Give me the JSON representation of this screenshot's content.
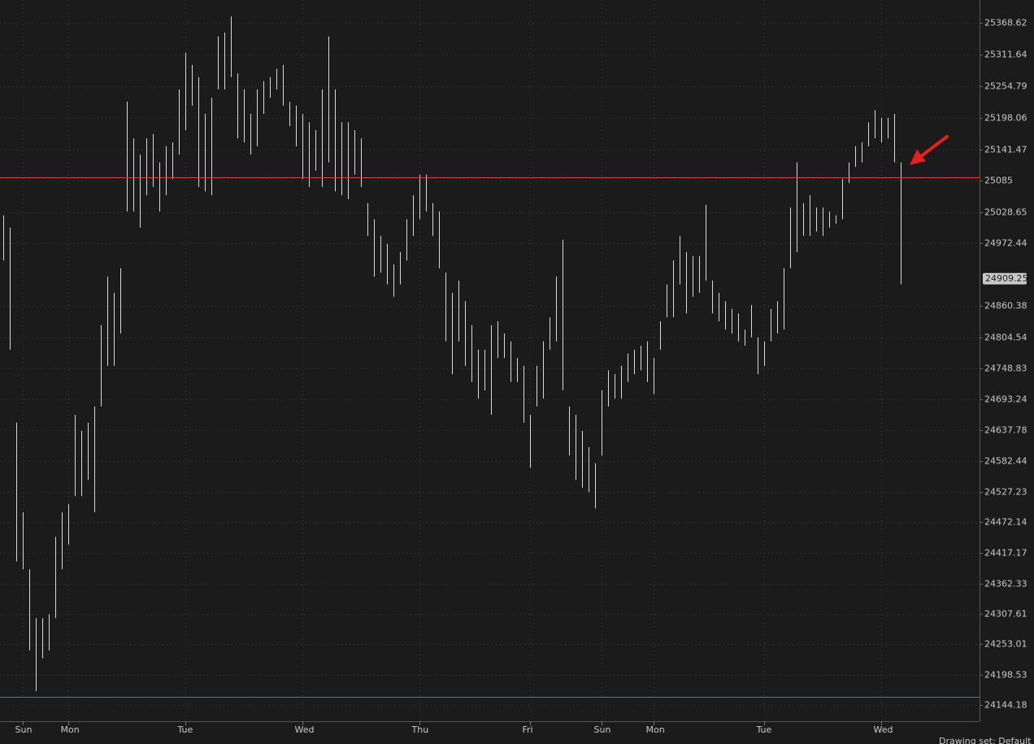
{
  "chart_data": {
    "type": "ohlc",
    "categories": [
      null,
      null,
      null,
      "Sun",
      null,
      null,
      null,
      null,
      null,
      null,
      "Mon",
      null,
      null,
      null,
      null,
      null,
      null,
      null,
      null,
      null,
      null,
      null,
      null,
      null,
      null,
      null,
      null,
      null,
      "Tue",
      null,
      null,
      null,
      null,
      null,
      null,
      null,
      null,
      null,
      null,
      null,
      null,
      null,
      null,
      null,
      null,
      null,
      "Wed",
      null,
      null,
      null,
      null,
      null,
      null,
      null,
      null,
      null,
      null,
      null,
      null,
      null,
      null,
      null,
      null,
      null,
      "Thu",
      null,
      null,
      null,
      null,
      null,
      null,
      null,
      null,
      null,
      null,
      null,
      null,
      null,
      null,
      null,
      null,
      "Fri",
      null,
      null,
      null,
      null,
      null,
      null,
      null,
      null,
      null,
      null,
      "Sun",
      null,
      null,
      null,
      null,
      null,
      null,
      null,
      "Mon",
      null,
      null,
      null,
      null,
      null,
      null,
      null,
      null,
      null,
      null,
      null,
      null,
      null,
      null,
      null,
      null,
      "Tue",
      null,
      null,
      null,
      null,
      null,
      null,
      null,
      null,
      null,
      null,
      null,
      null,
      null,
      null,
      null,
      null,
      null,
      "Wed",
      null,
      null,
      null
    ],
    "high": [
      25023,
      25001,
      24651,
      24490,
      24388,
      24300,
      24300,
      24307,
      24446,
      24490,
      24505,
      24665,
      24636,
      24651,
      24680,
      24826,
      24913,
      24884,
      24928,
      25227,
      25161,
      25132,
      25161,
      25169,
      25118,
      25147,
      25154,
      25249,
      25315,
      25293,
      25271,
      25205,
      25234,
      25344,
      25351,
      25380,
      25278,
      25249,
      25205,
      25249,
      25264,
      25271,
      25286,
      25293,
      25227,
      25220,
      25205,
      25190,
      25176,
      25249,
      25344,
      25249,
      25190,
      25190,
      25176,
      25161,
      25045,
      25016,
      24986,
      24972,
      24935,
      24957,
      25016,
      25059,
      25096,
      25096,
      25045,
      25030,
      24920,
      24884,
      24906,
      24869,
      24826,
      24782,
      24782,
      24826,
      24833,
      24811,
      24797,
      24767,
      24753,
      24665,
      24753,
      24797,
      24840,
      24913,
      24979,
      24680,
      24665,
      24636,
      24607,
      24578,
      24709,
      24745,
      24738,
      24753,
      24775,
      24782,
      24789,
      24797,
      24767,
      24833,
      24899,
      24942,
      24986,
      24957,
      24950,
      24950,
      25042,
      24906,
      24884,
      24869,
      24855,
      24847,
      24818,
      24862,
      24804,
      24797,
      24855,
      24869,
      24928,
      25037,
      25118,
      25045,
      25059,
      25037,
      25037,
      25030,
      25023,
      25088,
      25118,
      25147,
      25154,
      25190,
      25212,
      25198,
      25198,
      25205,
      25118
    ],
    "low": [
      24942,
      24782,
      24402,
      24388,
      24242,
      24169,
      24228,
      24242,
      24300,
      24388,
      24432,
      24519,
      24519,
      24548,
      24490,
      24680,
      24753,
      24753,
      24811,
      25030,
      25030,
      25001,
      25059,
      25074,
      25030,
      25059,
      25088,
      25132,
      25176,
      25220,
      25074,
      25066,
      25059,
      25249,
      25249,
      25271,
      25161,
      25154,
      25132,
      25147,
      25205,
      25234,
      25249,
      25220,
      25183,
      25147,
      25088,
      25074,
      25103,
      25074,
      25118,
      25066,
      25059,
      25052,
      25096,
      25074,
      24986,
      24913,
      24920,
      24899,
      24877,
      24899,
      24942,
      24986,
      25016,
      25030,
      24986,
      24928,
      24797,
      24738,
      24797,
      24753,
      24724,
      24694,
      24709,
      24665,
      24767,
      24767,
      24724,
      24724,
      24651,
      24570,
      24680,
      24694,
      24782,
      24797,
      24709,
      24592,
      24548,
      24534,
      24526,
      24497,
      24592,
      24680,
      24694,
      24694,
      24724,
      24738,
      24745,
      24724,
      24702,
      24782,
      24840,
      24840,
      24899,
      24847,
      24877,
      24884,
      24906,
      24847,
      24833,
      24818,
      24811,
      24797,
      24789,
      24804,
      24738,
      24753,
      24797,
      24811,
      24818,
      24928,
      24957,
      24986,
      24986,
      24994,
      24986,
      25001,
      25008,
      25016,
      25081,
      25110,
      25118,
      25147,
      25161,
      25154,
      25161,
      25118,
      24899
    ],
    "color": "#d8d8d8",
    "ylim": [
      24115,
      25409.5
    ],
    "yticks": [
      25368.62,
      25311.64,
      25254.79,
      25198.06,
      25141.47,
      25085,
      25028.65,
      24972.44,
      24860.38,
      24804.54,
      24748.83,
      24693.24,
      24637.78,
      24582.44,
      24527.23,
      24472.14,
      24417.17,
      24362.33,
      24307.61,
      24253.01,
      24198.53,
      24144.18
    ],
    "grid": true,
    "last_price": 24909.25,
    "reference_lines": [
      25092,
      24159
    ],
    "reference_line_color": "#e23b3b"
  },
  "status_bar": {
    "text": "Drawing set: Default"
  }
}
